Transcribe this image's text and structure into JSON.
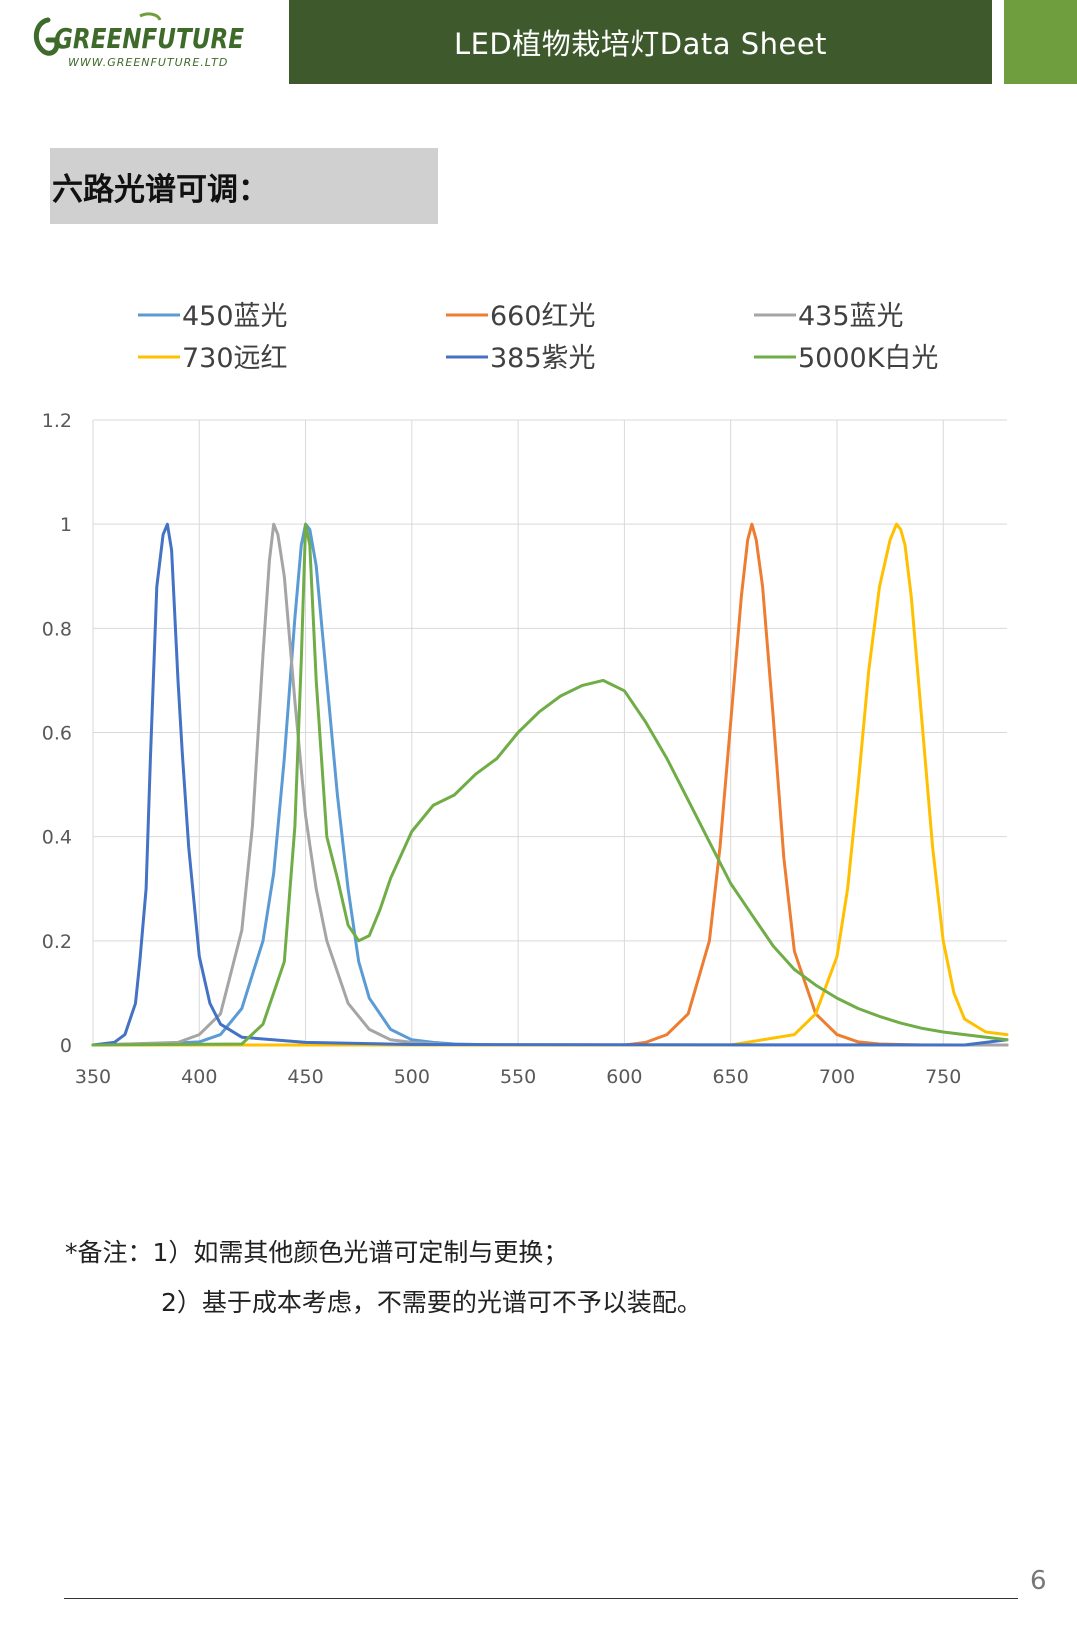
{
  "logo": {
    "name": "GREENFUTURE",
    "url": "WWW.GREENFUTURE.LTD"
  },
  "header": {
    "title": "LED植物栽培灯Data Sheet"
  },
  "section": {
    "title": "六路光谱可调："
  },
  "chart_data": {
    "type": "line",
    "legend_position": "top",
    "grid": true,
    "xlim": [
      350,
      780
    ],
    "ylim": [
      0,
      1.2
    ],
    "x_ticks": [
      "350",
      "400",
      "450",
      "500",
      "550",
      "600",
      "650",
      "700",
      "750"
    ],
    "y_ticks": [
      "0",
      "0.2",
      "0.4",
      "0.6",
      "0.8",
      "1",
      "1.2"
    ],
    "series": [
      {
        "name": "450蓝光",
        "color": "#5b9bd5",
        "x": [
          350,
          380,
          400,
          410,
          420,
          430,
          435,
          440,
          445,
          448,
          450,
          452,
          455,
          460,
          465,
          470,
          475,
          480,
          490,
          500,
          510,
          520,
          540,
          780
        ],
        "y": [
          0,
          0.002,
          0.006,
          0.02,
          0.07,
          0.2,
          0.33,
          0.55,
          0.82,
          0.96,
          1,
          0.99,
          0.92,
          0.7,
          0.48,
          0.3,
          0.16,
          0.09,
          0.03,
          0.01,
          0.005,
          0.002,
          0,
          0
        ]
      },
      {
        "name": "660红光",
        "color": "#ed7d31",
        "x": [
          350,
          600,
          610,
          620,
          630,
          640,
          645,
          650,
          655,
          658,
          660,
          662,
          665,
          670,
          675,
          680,
          690,
          700,
          710,
          720,
          740,
          780
        ],
        "y": [
          0,
          0,
          0.005,
          0.02,
          0.06,
          0.2,
          0.38,
          0.62,
          0.86,
          0.97,
          1,
          0.97,
          0.88,
          0.63,
          0.36,
          0.18,
          0.06,
          0.02,
          0.006,
          0.002,
          0,
          0
        ]
      },
      {
        "name": "435蓝光",
        "color": "#a5a5a5",
        "x": [
          350,
          390,
          400,
          410,
          420,
          425,
          430,
          433,
          435,
          437,
          440,
          445,
          450,
          455,
          460,
          470,
          480,
          490,
          500,
          520,
          780
        ],
        "y": [
          0,
          0.005,
          0.02,
          0.06,
          0.22,
          0.42,
          0.75,
          0.93,
          1,
          0.98,
          0.9,
          0.66,
          0.44,
          0.3,
          0.2,
          0.08,
          0.03,
          0.01,
          0.005,
          0,
          0
        ]
      },
      {
        "name": "730远红",
        "color": "#ffc000",
        "x": [
          350,
          650,
          680,
          690,
          700,
          705,
          710,
          715,
          720,
          725,
          728,
          730,
          732,
          735,
          740,
          745,
          750,
          755,
          760,
          770,
          780
        ],
        "y": [
          0,
          0,
          0.02,
          0.06,
          0.17,
          0.3,
          0.5,
          0.72,
          0.88,
          0.97,
          1,
          0.99,
          0.96,
          0.86,
          0.62,
          0.38,
          0.2,
          0.1,
          0.05,
          0.025,
          0.02
        ]
      },
      {
        "name": "385紫光",
        "color": "#4472c4",
        "x": [
          350,
          360,
          365,
          370,
          372,
          375,
          377,
          380,
          383,
          385,
          387,
          390,
          392,
          395,
          400,
          405,
          410,
          420,
          450,
          500,
          760,
          780
        ],
        "y": [
          0,
          0.005,
          0.02,
          0.08,
          0.16,
          0.3,
          0.55,
          0.88,
          0.98,
          1,
          0.95,
          0.7,
          0.56,
          0.38,
          0.17,
          0.08,
          0.04,
          0.015,
          0.005,
          0.001,
          0,
          0.01
        ]
      },
      {
        "name": "5000K白光",
        "color": "#70ad47",
        "x": [
          350,
          420,
          430,
          440,
          445,
          448,
          450,
          452,
          455,
          460,
          465,
          470,
          475,
          480,
          485,
          490,
          500,
          510,
          520,
          530,
          540,
          550,
          560,
          570,
          580,
          590,
          600,
          610,
          620,
          630,
          640,
          650,
          660,
          670,
          680,
          690,
          700,
          710,
          720,
          730,
          740,
          750,
          760,
          780
        ],
        "y": [
          0,
          0.002,
          0.04,
          0.16,
          0.42,
          0.74,
          1,
          0.96,
          0.7,
          0.4,
          0.32,
          0.23,
          0.2,
          0.21,
          0.26,
          0.32,
          0.41,
          0.46,
          0.48,
          0.52,
          0.55,
          0.6,
          0.64,
          0.67,
          0.69,
          0.7,
          0.68,
          0.62,
          0.55,
          0.47,
          0.39,
          0.31,
          0.25,
          0.19,
          0.145,
          0.115,
          0.09,
          0.07,
          0.055,
          0.042,
          0.032,
          0.025,
          0.02,
          0.01
        ]
      }
    ]
  },
  "notes": {
    "line1": "*备注：1）如需其他颜色光谱可定制与更换；",
    "line2": "2）基于成本考虑，不需要的光谱可不予以装配。"
  },
  "footer": {
    "page_number": "6"
  }
}
